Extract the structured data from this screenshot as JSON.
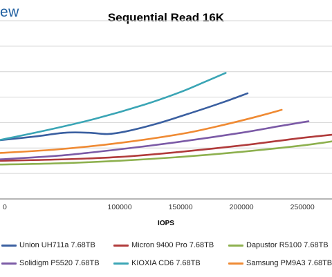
{
  "brand": {
    "text": "ew"
  },
  "chart_data": {
    "type": "line",
    "title": "Sequential Read 16K",
    "xlabel": "IOPS",
    "ylabel": "",
    "xlim": [
      0,
      280000
    ],
    "ylim": [
      0,
      1.4
    ],
    "xticks": [
      0,
      100000,
      150000,
      200000,
      250000
    ],
    "xtick_labels": [
      "0",
      "100000",
      "150000",
      "200000",
      "250000"
    ],
    "grid": "horizontal",
    "legend_position": "bottom",
    "series": [
      {
        "name": "Union UH711a 7.68TB",
        "color": "#3a5fa0",
        "x": [
          0,
          30000,
          55000,
          75000,
          90000,
          105000,
          130000,
          160000,
          185000,
          205000
        ],
        "y": [
          0.46,
          0.49,
          0.52,
          0.52,
          0.51,
          0.53,
          0.59,
          0.68,
          0.76,
          0.83
        ]
      },
      {
        "name": "Micron 9400 Pro 7.68TB",
        "color": "#b03a3a",
        "x": [
          0,
          50000,
          100000,
          150000,
          200000,
          250000,
          280000
        ],
        "y": [
          0.3,
          0.31,
          0.33,
          0.37,
          0.42,
          0.48,
          0.51
        ]
      },
      {
        "name": "Dapustor R5100 7.68TB",
        "color": "#8db04e",
        "x": [
          0,
          50000,
          100000,
          150000,
          200000,
          250000,
          280000
        ],
        "y": [
          0.27,
          0.28,
          0.3,
          0.33,
          0.37,
          0.42,
          0.46
        ]
      },
      {
        "name": "Solidigm P5520 7.68TB",
        "color": "#7b5aa6",
        "x": [
          0,
          50000,
          100000,
          150000,
          200000,
          230000,
          255000
        ],
        "y": [
          0.31,
          0.34,
          0.39,
          0.45,
          0.52,
          0.57,
          0.61
        ]
      },
      {
        "name": "KIOXIA CD6 7.68TB",
        "color": "#3aa5b5",
        "x": [
          0,
          40000,
          80000,
          120000,
          150000,
          170000,
          187000
        ],
        "y": [
          0.46,
          0.54,
          0.63,
          0.74,
          0.84,
          0.92,
          0.99
        ]
      },
      {
        "name": "Samsung PM9A3 7.68TB",
        "color": "#ef8a33",
        "x": [
          0,
          50000,
          100000,
          150000,
          180000,
          210000,
          233000
        ],
        "y": [
          0.36,
          0.39,
          0.44,
          0.51,
          0.57,
          0.64,
          0.7
        ]
      }
    ]
  }
}
